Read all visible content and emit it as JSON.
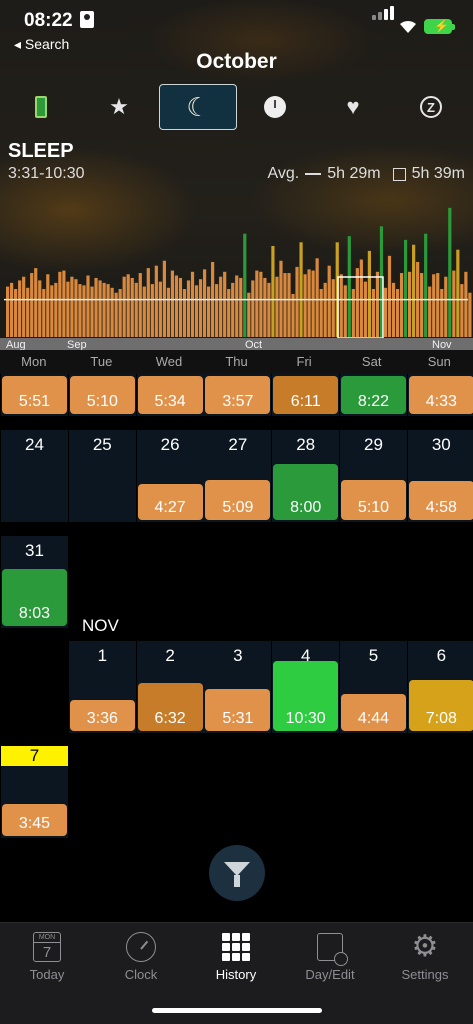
{
  "status_bar": {
    "time": "08:22",
    "back_label": "◂ Search"
  },
  "header": {
    "title": "October"
  },
  "modes": [
    {
      "name": "battery-mode",
      "selected": false
    },
    {
      "name": "favorites-mode",
      "icon": "★",
      "selected": false
    },
    {
      "name": "sleep-mode",
      "icon": "☾",
      "selected": true
    },
    {
      "name": "clock-mode",
      "selected": false
    },
    {
      "name": "health-mode",
      "icon": "♥",
      "selected": false
    },
    {
      "name": "snooze-mode",
      "icon": "Z",
      "selected": false
    }
  ],
  "summary": {
    "label": "SLEEP",
    "range": "3:31-10:30",
    "avg_label": "Avg.",
    "avg_value": "5h 29m",
    "selected_value": "5h 39m"
  },
  "chart_data": {
    "type": "bar",
    "x_ticks": [
      "Aug",
      "Sep",
      "Oct",
      "Nov"
    ],
    "values": [
      4.1,
      4.4,
      3.9,
      4.6,
      4.9,
      4.0,
      5.2,
      5.6,
      4.6,
      3.9,
      5.1,
      4.2,
      4.4,
      5.3,
      5.4,
      4.5,
      4.9,
      4.7,
      4.3,
      4.2,
      5.0,
      4.1,
      4.8,
      4.6,
      4.4,
      4.3,
      4.0,
      3.6,
      3.9,
      4.9,
      5.1,
      4.8,
      4.4,
      5.2,
      4.1,
      5.6,
      4.3,
      5.8,
      4.5,
      6.2,
      4.0,
      5.4,
      5.0,
      4.8,
      3.9,
      4.6,
      5.3,
      4.2,
      4.7,
      5.5,
      4.1,
      6.1,
      4.3,
      4.9,
      5.3,
      3.9,
      4.4,
      5.0,
      4.8,
      8.4,
      3.6,
      4.6,
      5.4,
      5.3,
      4.8,
      4.4,
      7.4,
      4.9,
      6.2,
      5.2,
      5.2,
      3.5,
      5.7,
      7.7,
      5.1,
      5.5,
      5.4,
      6.4,
      3.9,
      4.4,
      5.8,
      4.7,
      7.7,
      5.1,
      4.2,
      8.2,
      3.9,
      5.6,
      6.3,
      4.5,
      7.0,
      3.9,
      5.3,
      9.0,
      4.0,
      6.6,
      4.4,
      3.9,
      5.2,
      7.9,
      5.3,
      7.5,
      6.1,
      5.2,
      8.4,
      4.1,
      5.1,
      5.2,
      3.9,
      4.9,
      10.5,
      5.4,
      7.1,
      4.3,
      5.3,
      3.6
    ],
    "avg_line": 5.48
  },
  "weekdays": [
    "Mon",
    "Tue",
    "Wed",
    "Thu",
    "Fri",
    "Sat",
    "Sun"
  ],
  "week_prev": [
    "5:51",
    "5:10",
    "5:34",
    "3:57",
    "6:11",
    "8:22",
    "4:33"
  ],
  "week_oct_24": [
    {
      "day": "24",
      "value": ""
    },
    {
      "day": "25",
      "value": ""
    },
    {
      "day": "26",
      "value": "4:27"
    },
    {
      "day": "27",
      "value": "5:09"
    },
    {
      "day": "28",
      "value": "8:00"
    },
    {
      "day": "29",
      "value": "5:10"
    },
    {
      "day": "30",
      "value": "4:58"
    }
  ],
  "week_oct_31": [
    {
      "day": "31",
      "value": "8:03"
    }
  ],
  "nov_label": "NOV",
  "week_nov_1": [
    {
      "day": "1",
      "value": "3:36"
    },
    {
      "day": "2",
      "value": "6:32"
    },
    {
      "day": "3",
      "value": "5:31"
    },
    {
      "day": "4",
      "value": "10:30"
    },
    {
      "day": "5",
      "value": "4:44"
    },
    {
      "day": "6",
      "value": "7:08"
    }
  ],
  "week_nov_7": [
    {
      "day": "7",
      "value": "3:45"
    }
  ],
  "colors": {
    "orange": "#e0914a",
    "dark_orange": "#c77c2a",
    "green": "#2a9a3a",
    "bright_green": "#2ecc40",
    "gold": "#d6a21a",
    "today": "#fff200"
  },
  "tabs": [
    {
      "label": "Today",
      "icon_mon": "MON",
      "icon_num": "7"
    },
    {
      "label": "Clock"
    },
    {
      "label": "History"
    },
    {
      "label": "Day/Edit"
    },
    {
      "label": "Settings"
    }
  ]
}
